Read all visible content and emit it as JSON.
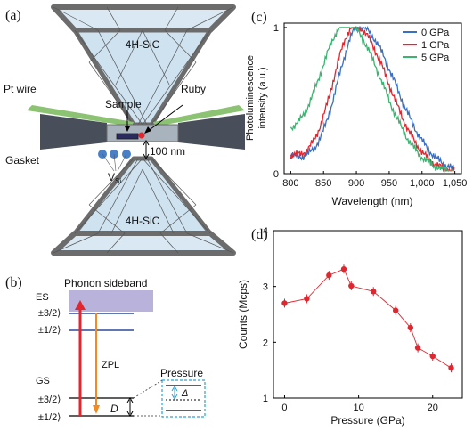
{
  "panels": {
    "a": {
      "label": "(a)",
      "anvil_top": "4H-SiC",
      "anvil_bottom": "4H-SiC",
      "pt_wire": "Pt wire",
      "ruby": "Ruby",
      "sample": "Sample",
      "gasket": "Gasket",
      "vsi_main": "V",
      "vsi_sub": "Si",
      "thickness": "100 nm"
    },
    "b": {
      "label": "(b)",
      "phonon": "Phonon sideband",
      "es": "ES",
      "es_32": "|±3/2⟩",
      "es_12": "|±1/2⟩",
      "gs": "GS",
      "gs_32": "|±3/2⟩",
      "gs_12": "|±1/2⟩",
      "zpl": "ZPL",
      "d": "D",
      "pressure": "Pressure",
      "delta": "Δ"
    },
    "c": {
      "label": "(c)"
    },
    "d": {
      "label": "(d)"
    }
  },
  "colors": {
    "blue": "#3a6fc4",
    "red": "#e0262f",
    "green": "#3cb371",
    "orange": "#f08a24",
    "purple": "#b9b3dc",
    "cyan": "#29a3d6",
    "anvil": "#cfe2f0"
  },
  "chart_data": [
    {
      "panel": "c",
      "type": "line",
      "xlabel": "Wavelength (nm)",
      "ylabel": "Photoluminescence intensity (a.u.)",
      "xlim": [
        790,
        1060
      ],
      "ylim": [
        0,
        1.03
      ],
      "xticks": [
        800,
        850,
        900,
        950,
        "1,000",
        "1,050"
      ],
      "yticks": [
        "0",
        "1"
      ],
      "legend_position": "top-right",
      "series": [
        {
          "name": "0 GPa",
          "color": "#3a6fc4",
          "center": 905,
          "sigma_left": 33,
          "sigma_right": 55,
          "offset": 0.12
        },
        {
          "name": "1 GPa",
          "color": "#e0262f",
          "center": 898,
          "sigma_left": 33,
          "sigma_right": 52,
          "offset": 0.12
        },
        {
          "name": "5 GPa",
          "color": "#3cb371",
          "center": 886,
          "sigma_left": 40,
          "sigma_right": 54,
          "offset": 0.22
        }
      ]
    },
    {
      "panel": "d",
      "type": "scatter",
      "xlabel": "Pressure (GPa)",
      "ylabel": "Counts (Mcps)",
      "xlim": [
        -1.5,
        24
      ],
      "ylim": [
        1,
        4
      ],
      "xticks": [
        "0",
        "10",
        "20"
      ],
      "yticks": [
        "1",
        "2",
        "3",
        "4"
      ],
      "color": "#e0262f",
      "x": [
        0,
        3,
        6,
        8,
        9,
        12,
        15,
        17,
        18,
        20,
        22.5
      ],
      "y": [
        2.7,
        2.78,
        3.2,
        3.31,
        3.01,
        2.91,
        2.57,
        2.26,
        1.9,
        1.75,
        1.54
      ]
    }
  ]
}
